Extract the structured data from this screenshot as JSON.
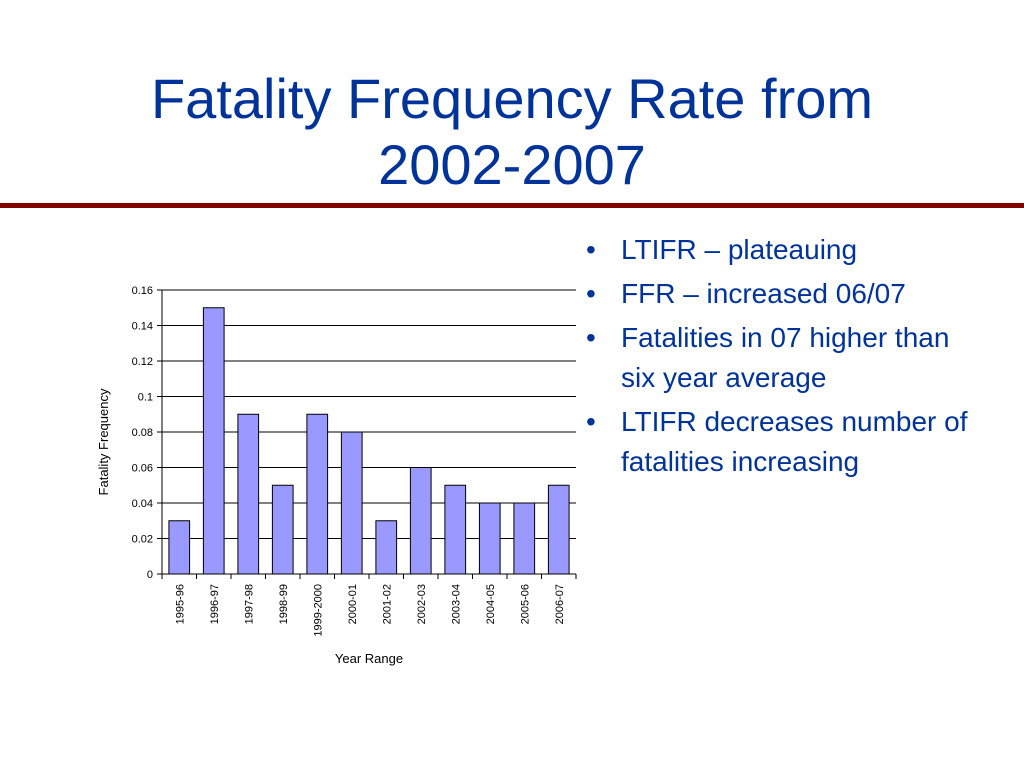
{
  "slide": {
    "title_line1": "Fatality Frequency Rate from",
    "title_line2": "2002-2007",
    "accent_color": "#003399",
    "rule_color": "#800000"
  },
  "bullets": [
    "LTIFR – plateauing",
    "FFR – increased 06/07",
    "Fatalities in 07 higher than six year average",
    "LTIFR decreases number of fatalities increasing"
  ],
  "bullet_glyph": "•",
  "chart_data": {
    "type": "bar",
    "title": "",
    "xlabel": "Year Range",
    "ylabel": "Fatality Frequency",
    "categories": [
      "1995-96",
      "1996-97",
      "1997-98",
      "1998-99",
      "1999-2000",
      "2000-01",
      "2001-02",
      "2002-03",
      "2003-04",
      "2004-05",
      "2005-06",
      "2006-07"
    ],
    "values": [
      0.03,
      0.15,
      0.09,
      0.05,
      0.09,
      0.08,
      0.03,
      0.06,
      0.05,
      0.04,
      0.04,
      0.05
    ],
    "ylim": [
      0,
      0.16
    ],
    "yticks": [
      "0",
      "0.02",
      "0.04",
      "0.06",
      "0.08",
      "0.1",
      "0.12",
      "0.14",
      "0.16"
    ],
    "grid": true,
    "legend": "none",
    "bar_color": "#9999ff"
  }
}
